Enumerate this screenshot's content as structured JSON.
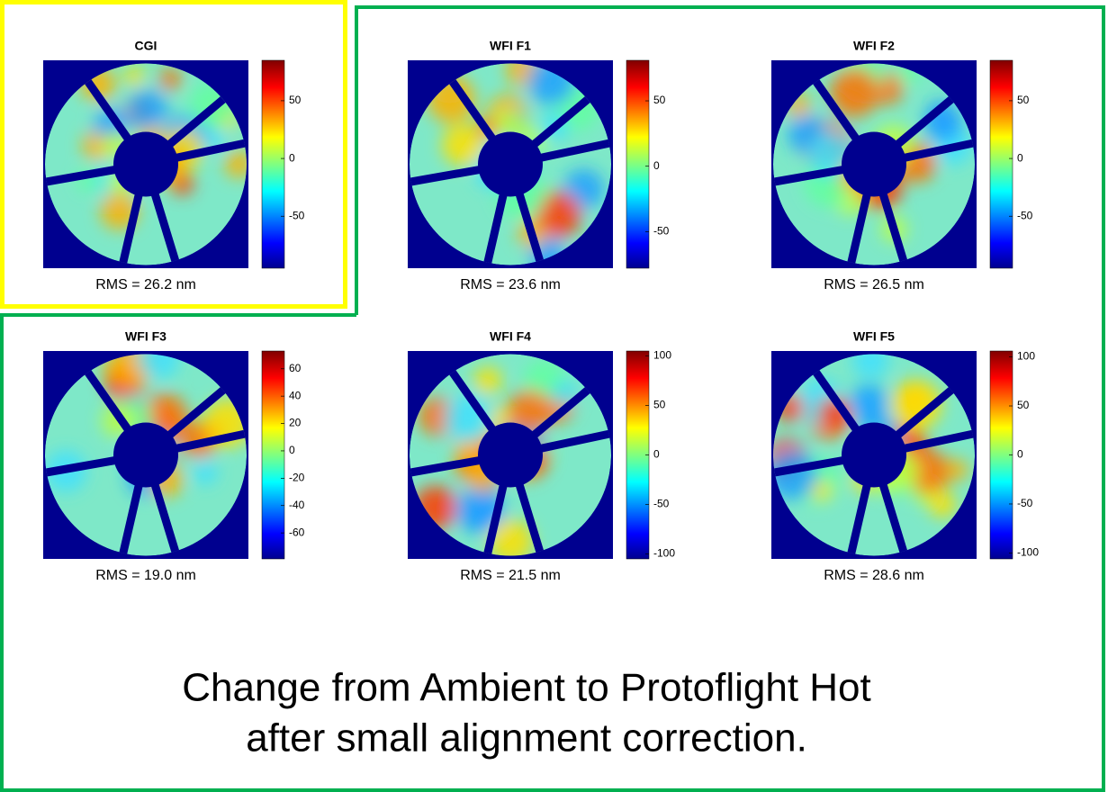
{
  "panels": [
    {
      "title": "CGI",
      "rms": "RMS = 26.2 nm",
      "colorbar": {
        "lim": [
          -95,
          85
        ],
        "ticks": [
          50,
          0,
          -50
        ]
      }
    },
    {
      "title": "WFI F1",
      "rms": "RMS = 23.6 nm",
      "colorbar": {
        "lim": [
          -78,
          81
        ],
        "ticks": [
          50,
          0,
          -50
        ]
      }
    },
    {
      "title": "WFI F2",
      "rms": "RMS = 26.5 nm",
      "colorbar": {
        "lim": [
          -95,
          85
        ],
        "ticks": [
          50,
          0,
          -50
        ]
      }
    },
    {
      "title": "WFI F3",
      "rms": "RMS = 19.0 nm",
      "colorbar": {
        "lim": [
          -79,
          73
        ],
        "ticks": [
          60,
          40,
          20,
          0,
          -20,
          -40,
          -60
        ]
      }
    },
    {
      "title": "WFI F4",
      "rms": "RMS = 21.5 nm",
      "colorbar": {
        "lim": [
          -105,
          105
        ],
        "ticks": [
          100,
          50,
          0,
          -50,
          -100
        ]
      }
    },
    {
      "title": "WFI F5",
      "rms": "RMS = 28.6 nm",
      "colorbar": {
        "lim": [
          -106,
          106
        ],
        "ticks": [
          100,
          50,
          0,
          -50,
          -100
        ]
      }
    }
  ],
  "caption": [
    "Change from Ambient to Protoflight Hot",
    "after small alignment correction."
  ]
}
